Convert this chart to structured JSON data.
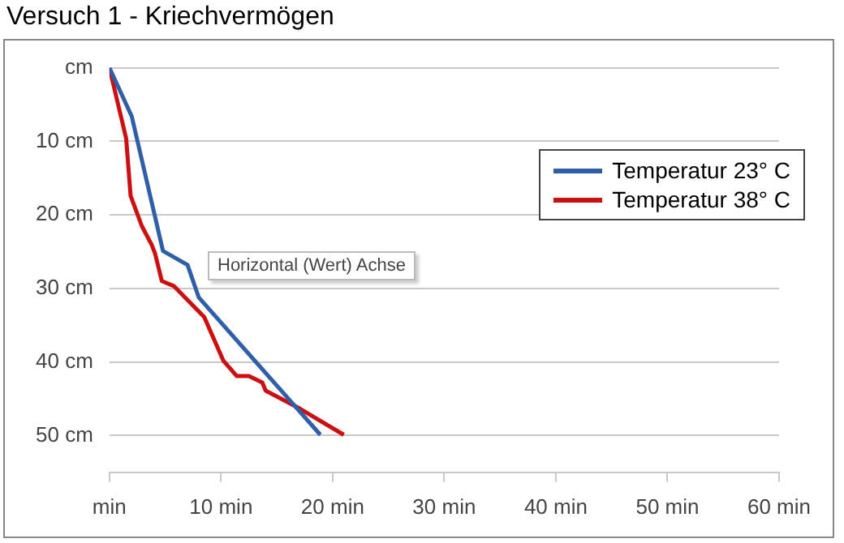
{
  "chart_data": {
    "type": "line",
    "title": "Versuch 1 - Kriechvermögen",
    "series": [
      {
        "name": "Temperatur 23° C",
        "color": "#2e5fa8",
        "x": [
          0,
          2.0,
          4.8,
          7.0,
          8.0,
          18.9
        ],
        "values": [
          0,
          6.6,
          24.9,
          26.8,
          31.2,
          49.9
        ]
      },
      {
        "name": "Temperatur 38° C",
        "color": "#cc1010",
        "x": [
          0,
          1.5,
          1.9,
          2.9,
          3.8,
          4.1,
          4.7,
          5.8,
          8.5,
          10.2,
          11.4,
          12.5,
          13.7,
          14.0,
          16.9,
          21.0
        ],
        "values": [
          0,
          9.6,
          17.4,
          21.5,
          24.1,
          25.3,
          29.0,
          29.7,
          33.9,
          39.8,
          41.9,
          41.9,
          42.8,
          43.9,
          46.2,
          49.9
        ]
      }
    ],
    "xlim": [
      0,
      60
    ],
    "xticks": [
      {
        "value": 0,
        "label": "min"
      },
      {
        "value": 10,
        "label": "10 min"
      },
      {
        "value": 20,
        "label": "20 min"
      },
      {
        "value": 30,
        "label": "30 min"
      },
      {
        "value": 40,
        "label": "40 min"
      },
      {
        "value": 50,
        "label": "50 min"
      },
      {
        "value": 60,
        "label": "60 min"
      }
    ],
    "ylim": [
      55,
      0
    ],
    "yticks": [
      {
        "value": 0,
        "label": "cm"
      },
      {
        "value": 10,
        "label": "10 cm"
      },
      {
        "value": 20,
        "label": "20 cm"
      },
      {
        "value": 30,
        "label": "30 cm"
      },
      {
        "value": 40,
        "label": "40 cm"
      },
      {
        "value": 50,
        "label": "50 cm"
      }
    ],
    "grid": "y",
    "legend": "top right",
    "marker": "none",
    "line_style": "solid",
    "annotations": [
      "Horizontal (Wert) Achse"
    ]
  }
}
